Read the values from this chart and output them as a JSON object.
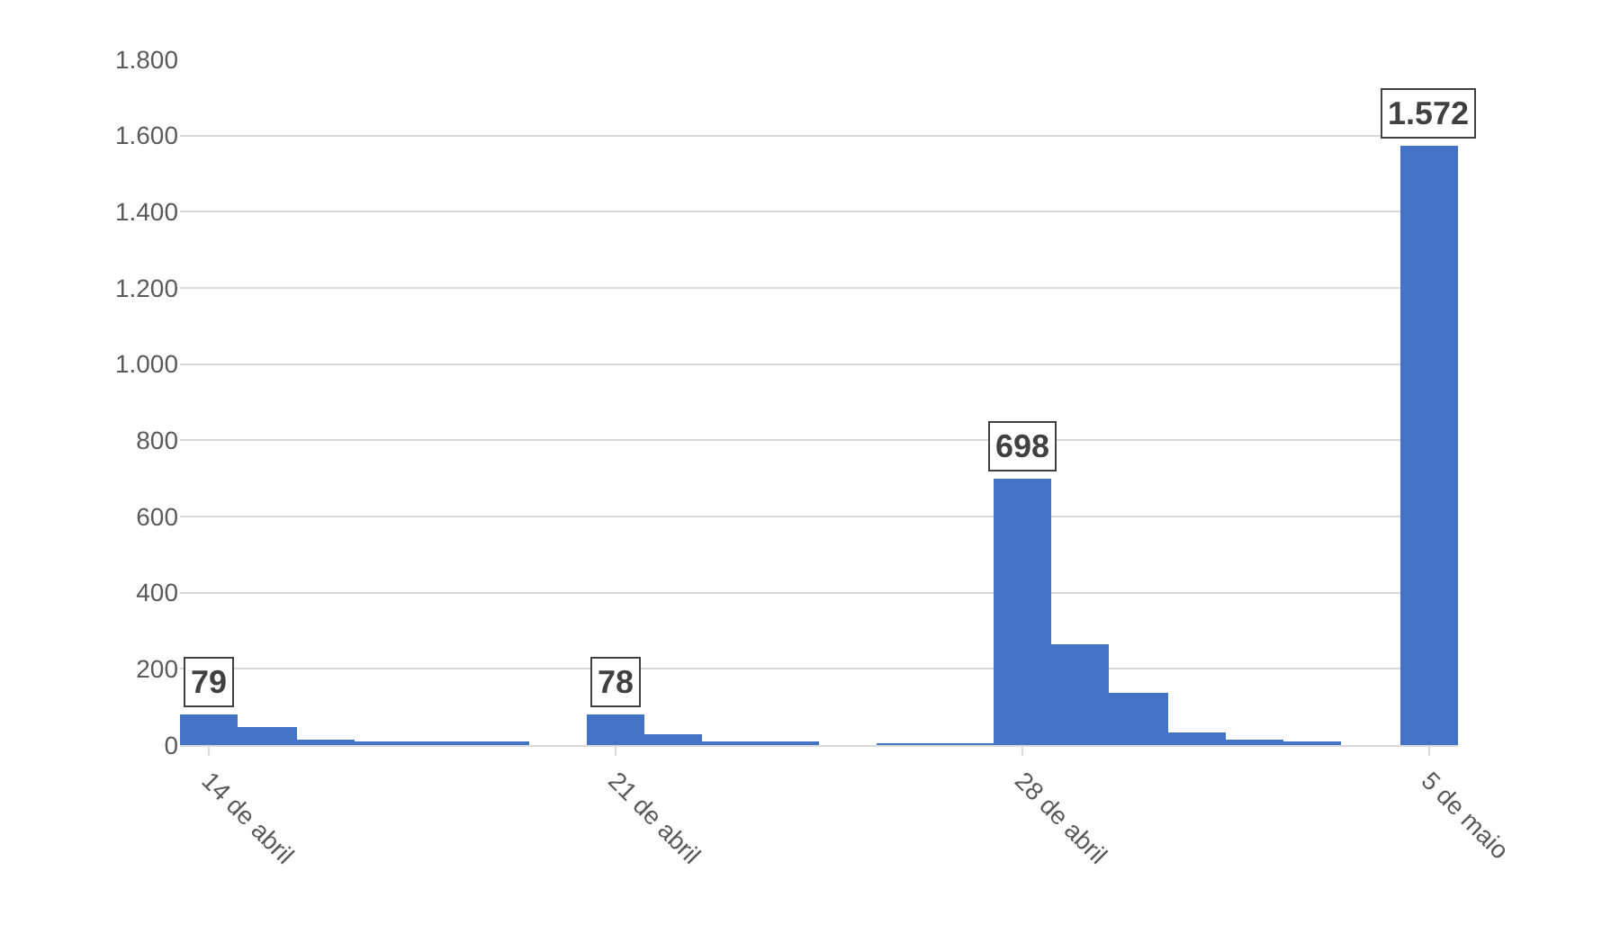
{
  "chart_data": {
    "type": "bar",
    "categories": [
      "14 de abril",
      null,
      null,
      null,
      null,
      null,
      null,
      "21 de abril",
      null,
      null,
      null,
      null,
      null,
      null,
      "28 de abril",
      null,
      null,
      null,
      null,
      null,
      null,
      "5 de maio"
    ],
    "values": [
      79,
      49,
      15,
      5,
      5,
      10,
      0,
      78,
      30,
      5,
      5,
      0,
      3,
      3,
      698,
      264,
      137,
      33,
      14,
      8,
      0,
      1572
    ],
    "value_labels": [
      "79",
      null,
      null,
      null,
      null,
      null,
      null,
      "78",
      null,
      null,
      null,
      null,
      null,
      null,
      "698",
      null,
      null,
      null,
      null,
      null,
      null,
      "1.572"
    ],
    "color": "#4472c4",
    "ylim": [
      0,
      1800
    ],
    "yticks": [
      0,
      200,
      400,
      600,
      800,
      {
        "value": 1000,
        "label": "1.000"
      },
      {
        "value": 1200,
        "label": "1.200"
      },
      {
        "value": 1400,
        "label": "1.400"
      },
      {
        "value": 1600,
        "label": "1.600"
      },
      {
        "value": 1800,
        "label": "1.800"
      }
    ],
    "grid": "y"
  }
}
